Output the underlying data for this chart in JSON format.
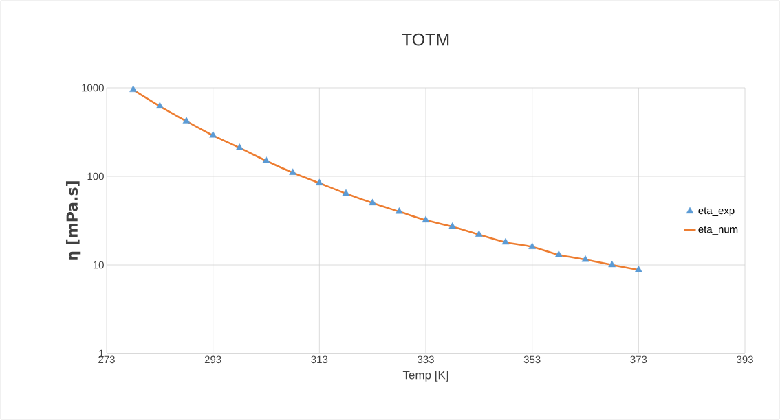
{
  "chart_data": {
    "type": "line",
    "title": "TOTM",
    "xlabel": "Temp [K]",
    "ylabel": "η [mPa.s]",
    "x": [
      278,
      283,
      288,
      293,
      298,
      303,
      308,
      313,
      318,
      323,
      328,
      333,
      338,
      343,
      348,
      353,
      358,
      363,
      368,
      373
    ],
    "series": [
      {
        "name": "eta_exp",
        "type": "scatter",
        "marker": "triangle",
        "color": "#5b9bd5",
        "values": [
          950,
          620,
          420,
          290,
          210,
          150,
          110,
          84,
          64,
          50,
          40,
          32,
          27,
          22,
          18,
          16,
          13,
          11.5,
          10,
          8.8
        ]
      },
      {
        "name": "eta_num",
        "type": "line",
        "marker": "none",
        "line_style": "solid",
        "color": "#ed7d31",
        "values": [
          950,
          620,
          420,
          290,
          210,
          150,
          110,
          84,
          64,
          50,
          40,
          32,
          27,
          22,
          18,
          16,
          13,
          11.5,
          10,
          8.8
        ]
      }
    ],
    "xlim": [
      273,
      393
    ],
    "xticks": [
      273,
      293,
      313,
      333,
      353,
      373,
      393
    ],
    "ylim": [
      1,
      1000
    ],
    "yticks": [
      1,
      10,
      100,
      1000
    ],
    "log": "y",
    "grid": true,
    "legend": "right"
  }
}
